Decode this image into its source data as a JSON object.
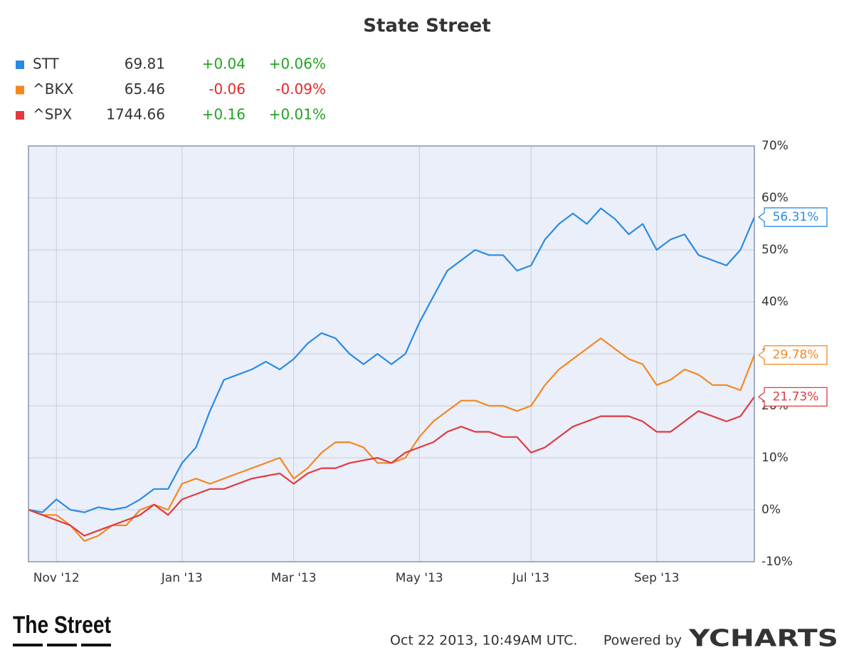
{
  "chart_data": {
    "type": "line",
    "title": "State Street",
    "categories": [
      null,
      null,
      "Nov '12",
      null,
      null,
      null,
      null,
      null,
      null,
      null,
      null,
      "Jan '13",
      null,
      null,
      null,
      null,
      null,
      null,
      null,
      "Mar '13",
      null,
      null,
      null,
      null,
      null,
      null,
      null,
      null,
      "May '13",
      null,
      null,
      null,
      null,
      null,
      null,
      null,
      "Jul '13",
      null,
      null,
      null,
      null,
      null,
      null,
      null,
      null,
      "Sep '13",
      null,
      null,
      null,
      null,
      null,
      null,
      null
    ],
    "ylim": [
      -10,
      70
    ],
    "yticks": [
      {
        "value": -10,
        "label": "-10%"
      },
      {
        "value": 0,
        "label": "0%"
      },
      {
        "value": 10,
        "label": "10%"
      },
      {
        "value": 20,
        "label": "20%"
      },
      {
        "value": 30,
        "label": "30%"
      },
      {
        "value": 40,
        "label": "40%"
      },
      {
        "value": 50,
        "label": "50%"
      },
      {
        "value": 60,
        "label": "60%"
      },
      {
        "value": 70,
        "label": "70%"
      }
    ],
    "grid": true,
    "gain_color": "#22a322",
    "loss_color": "#e8262a",
    "series": [
      {
        "name": "STT",
        "color": "#2a8be2",
        "quote": "69.81",
        "change": "+0.04",
        "change_pct": "+0.06%",
        "values": [
          0,
          -0.5,
          2,
          0,
          -0.5,
          0.5,
          0,
          0.5,
          2,
          4,
          4,
          9,
          12,
          19,
          25,
          26,
          27,
          28.5,
          27,
          29,
          32,
          34,
          33,
          30,
          28,
          30,
          28,
          30,
          36,
          41,
          46,
          48,
          50,
          49,
          49,
          46,
          47,
          52,
          55,
          57,
          55,
          58,
          56,
          53,
          55,
          50,
          52,
          53,
          49,
          48,
          47,
          50,
          56.31
        ],
        "value_labels": [
          null,
          null,
          null,
          null,
          null,
          null,
          null,
          null,
          null,
          null,
          null,
          null,
          null,
          null,
          null,
          null,
          null,
          null,
          null,
          null,
          null,
          null,
          null,
          null,
          null,
          null,
          null,
          null,
          null,
          null,
          null,
          null,
          null,
          null,
          null,
          null,
          null,
          null,
          null,
          null,
          null,
          null,
          null,
          null,
          null,
          null,
          null,
          null,
          null,
          null,
          null,
          null,
          "56.31%"
        ]
      },
      {
        "name": "^BKX",
        "color": "#f5871f",
        "quote": "65.46",
        "change": "-0.06",
        "change_pct": "-0.09%",
        "values": [
          0,
          -1,
          -1,
          -3,
          -6,
          -5,
          -3,
          -3,
          0,
          1,
          0,
          5,
          6,
          5,
          6,
          7,
          8,
          9,
          10,
          6,
          8,
          11,
          13,
          13,
          12,
          9,
          9,
          10,
          14,
          17,
          19,
          21,
          21,
          20,
          20,
          19,
          20,
          24,
          27,
          29,
          31,
          33,
          31,
          29,
          28,
          24,
          25,
          27,
          26,
          24,
          24,
          23,
          29.78
        ],
        "value_labels": [
          null,
          null,
          null,
          null,
          null,
          null,
          null,
          null,
          null,
          null,
          null,
          null,
          null,
          null,
          null,
          null,
          null,
          null,
          null,
          null,
          null,
          null,
          null,
          null,
          null,
          null,
          null,
          null,
          null,
          null,
          null,
          null,
          null,
          null,
          null,
          null,
          null,
          null,
          null,
          null,
          null,
          null,
          null,
          null,
          null,
          null,
          null,
          null,
          null,
          null,
          null,
          null,
          "29.78%"
        ]
      },
      {
        "name": "^SPX",
        "color": "#e03a3e",
        "quote": "1744.66",
        "change": "+0.16",
        "change_pct": "+0.01%",
        "values": [
          0,
          -1,
          -2,
          -3,
          -5,
          -4,
          -3,
          -2,
          -1,
          1,
          -1,
          2,
          3,
          4,
          4,
          5,
          6,
          6.5,
          7,
          5,
          7,
          8,
          8,
          9,
          9.5,
          10,
          9,
          11,
          12,
          13,
          15,
          16,
          15,
          15,
          14,
          14,
          11,
          12,
          14,
          16,
          17,
          18,
          18,
          18,
          17,
          15,
          15,
          17,
          19,
          18,
          17,
          18,
          21.73
        ],
        "value_labels": [
          null,
          null,
          null,
          null,
          null,
          null,
          null,
          null,
          null,
          null,
          null,
          null,
          null,
          null,
          null,
          null,
          null,
          null,
          null,
          null,
          null,
          null,
          null,
          null,
          null,
          null,
          null,
          null,
          null,
          null,
          null,
          null,
          null,
          null,
          null,
          null,
          null,
          null,
          null,
          null,
          null,
          null,
          null,
          null,
          null,
          null,
          null,
          null,
          null,
          null,
          null,
          null,
          "21.73%"
        ]
      }
    ],
    "footer": {
      "logo": "The Street",
      "timestamp": "Oct 22 2013, 10:49AM UTC.",
      "powered_by": "Powered by",
      "brand": "YCHARTS"
    }
  }
}
